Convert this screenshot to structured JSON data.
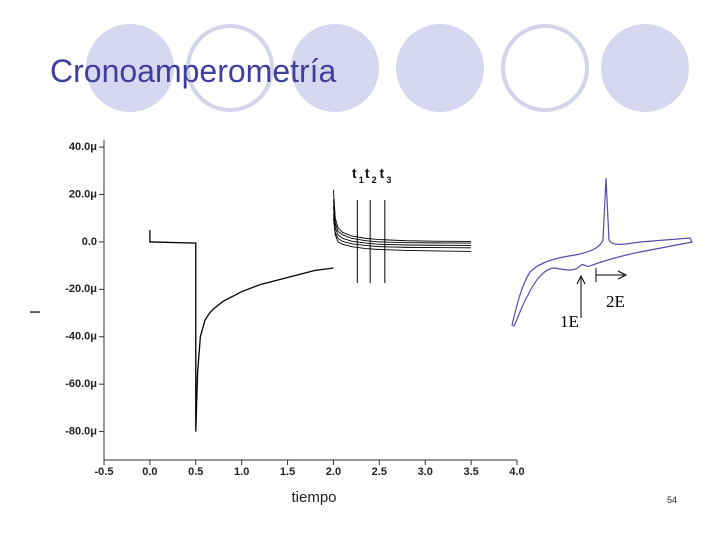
{
  "slide": {
    "title": "Cronoamperometría",
    "page_number": "54"
  },
  "chart_data": {
    "type": "line",
    "x_label": "tiempo",
    "y_label": "I",
    "xlim": [
      -0.5,
      4.0
    ],
    "xticks": [
      -0.5,
      {
        "value": 0,
        "label": "0.0"
      },
      0.5,
      {
        "value": 1,
        "label": "1.0"
      },
      1.5,
      {
        "value": 2,
        "label": "2.0"
      },
      2.5,
      {
        "value": 3,
        "label": "3.0"
      },
      3.5,
      {
        "value": 4,
        "label": "4.0"
      }
    ],
    "ylim": [
      -92,
      43
    ],
    "yticks": [
      {
        "value": 40,
        "label": "40.0μ"
      },
      {
        "value": 20,
        "label": "20.0μ"
      },
      {
        "value": 0,
        "label": "0.0"
      },
      {
        "value": -20,
        "label": "-20.0μ"
      },
      {
        "value": -40,
        "label": "-40.0μ"
      },
      {
        "value": -60,
        "label": "-60.0μ"
      },
      {
        "value": -80,
        "label": "-80.0μ"
      }
    ],
    "color": "#000000",
    "lines": [
      {
        "x": [
          0.0,
          0.0,
          0.02,
          0.5,
          0.5,
          0.52,
          0.55,
          0.6,
          0.65,
          0.7,
          0.8,
          0.9,
          1.0,
          1.2,
          1.4,
          1.6,
          1.8,
          2.0
        ],
        "values": [
          5,
          0,
          0,
          -0.5,
          -80,
          -55,
          -40,
          -33,
          -30,
          -28,
          -25,
          -23,
          -21,
          -18,
          -16,
          -14,
          -12,
          -11
        ]
      },
      {
        "x": [
          2.0,
          2.02,
          2.05,
          2.1,
          2.2,
          2.35,
          2.5,
          2.8,
          3.1,
          3.5
        ],
        "values": [
          22,
          10,
          6,
          4,
          2.5,
          1.5,
          1,
          0.5,
          0.3,
          0.2
        ]
      },
      {
        "x": [
          2.0,
          2.02,
          2.05,
          2.1,
          2.2,
          2.35,
          2.5,
          2.8,
          3.1,
          3.5
        ],
        "values": [
          18,
          8,
          4.5,
          3,
          1.5,
          0.5,
          0,
          -0.3,
          -0.4,
          -0.5
        ]
      },
      {
        "x": [
          2.0,
          2.02,
          2.05,
          2.1,
          2.2,
          2.35,
          2.5,
          2.8,
          3.1,
          3.5
        ],
        "values": [
          15,
          6,
          3,
          1.5,
          0.3,
          -0.5,
          -1,
          -1.3,
          -1.4,
          -1.5
        ]
      },
      {
        "x": [
          2.0,
          2.02,
          2.05,
          2.1,
          2.2,
          2.35,
          2.5,
          2.8,
          3.1,
          3.5
        ],
        "values": [
          12,
          4,
          1.5,
          0.2,
          -0.8,
          -1.5,
          -2,
          -2.3,
          -2.4,
          -2.5
        ]
      },
      {
        "x": [
          2.0,
          2.02,
          2.05,
          2.1,
          2.2,
          2.35,
          2.5,
          2.8,
          3.1,
          3.5
        ],
        "values": [
          10,
          3,
          0,
          -1,
          -2,
          -2.8,
          -3.2,
          -3.6,
          -3.8,
          -4
        ]
      }
    ],
    "markers": [
      {
        "x": 2.26,
        "label": "t",
        "sub": "1"
      },
      {
        "x": 2.4,
        "label": "t",
        "sub": "2"
      },
      {
        "x": 2.56,
        "label": "t",
        "sub": "3"
      }
    ]
  },
  "inset": {
    "labels": [
      "1E",
      "2E"
    ]
  }
}
